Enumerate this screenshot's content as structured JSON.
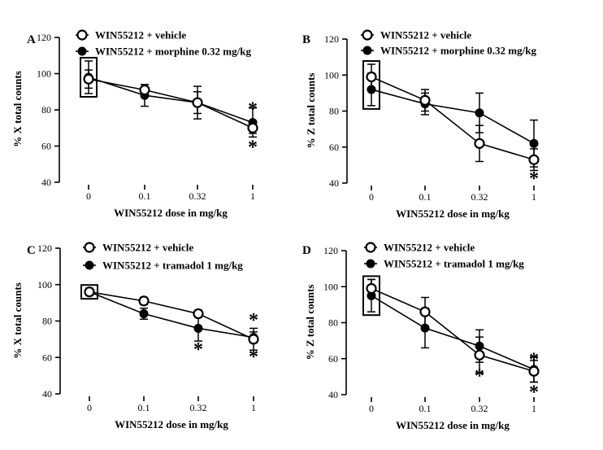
{
  "chart_data": [
    {
      "panel": "A",
      "type": "line",
      "categories": [
        "0",
        "0.1",
        "0.32",
        "1"
      ],
      "xlabel": "WIN55212 dose in mg/kg",
      "ylabel": "% X total counts",
      "ylim": [
        40,
        120
      ],
      "yticks": [
        40,
        60,
        80,
        100,
        120
      ],
      "legend_position": "top",
      "series": [
        {
          "name": "WIN55212 + vehicle",
          "marker": "open-circle",
          "values": [
            97,
            91,
            84,
            70
          ],
          "errors": [
            5,
            3,
            6,
            3
          ]
        },
        {
          "name": "WIN55212 + morphine 0.32 mg/kg",
          "marker": "filled-circle",
          "values": [
            98,
            88,
            84,
            73
          ],
          "errors": [
            9,
            6,
            9,
            8
          ]
        }
      ],
      "annotations": [
        {
          "category": "1",
          "value": 82,
          "text": "*"
        },
        {
          "category": "1",
          "value": 61,
          "text": "*"
        }
      ],
      "boxed_category": "0"
    },
    {
      "panel": "B",
      "type": "line",
      "categories": [
        "0",
        "0.1",
        "0.32",
        "1"
      ],
      "xlabel": "WIN55212 dose in mg/kg",
      "ylabel": "% Z total counts",
      "ylim": [
        40,
        120
      ],
      "yticks": [
        40,
        60,
        80,
        100,
        120
      ],
      "legend_position": "top",
      "series": [
        {
          "name": "WIN55212 + vehicle",
          "marker": "open-circle",
          "values": [
            99,
            86,
            62,
            53
          ],
          "errors": [
            7,
            6,
            10,
            6
          ]
        },
        {
          "name": "WIN55212 + morphine 0.32 mg/kg",
          "marker": "filled-circle",
          "values": [
            92,
            84,
            79,
            62
          ],
          "errors": [
            9,
            6,
            11,
            13
          ]
        }
      ],
      "annotations": [
        {
          "category": "1",
          "value": 44,
          "text": "*"
        }
      ],
      "boxed_category": "0"
    },
    {
      "panel": "C",
      "type": "line",
      "categories": [
        "0",
        "0.1",
        "0.32",
        "1"
      ],
      "xlabel": "WIN55212 dose in mg/kg",
      "ylabel": "% X total counts",
      "ylim": [
        40,
        120
      ],
      "yticks": [
        40,
        60,
        80,
        100,
        120
      ],
      "legend_position": "top",
      "series": [
        {
          "name": "WIN55212 + vehicle",
          "marker": "open-circle",
          "values": [
            96,
            91,
            84,
            70
          ],
          "errors": [
            2,
            2,
            2,
            6
          ]
        },
        {
          "name": "WIN55212 + tramadol 1 mg/kg",
          "marker": "filled-circle",
          "values": [
            96,
            84,
            76,
            71
          ],
          "errors": [
            2,
            3,
            7,
            3
          ]
        }
      ],
      "annotations": [
        {
          "category": "0.32",
          "value": 66,
          "text": "*"
        },
        {
          "category": "1",
          "value": 82,
          "text": "*"
        },
        {
          "category": "1",
          "value": 62,
          "text": "*"
        }
      ],
      "boxed_category": "0"
    },
    {
      "panel": "D",
      "type": "line",
      "categories": [
        "0",
        "0.1",
        "0.32",
        "1"
      ],
      "xlabel": "WIN55212 dose in mg/kg",
      "ylabel": "% Z total counts",
      "ylim": [
        40,
        120
      ],
      "yticks": [
        40,
        60,
        80,
        100,
        120
      ],
      "legend_position": "top",
      "series": [
        {
          "name": "WIN55212 + vehicle",
          "marker": "open-circle",
          "values": [
            99,
            86,
            62,
            53
          ],
          "errors": [
            5,
            8,
            10,
            6
          ]
        },
        {
          "name": "WIN55212 + tramadol 1 mg/kg",
          "marker": "filled-circle",
          "values": [
            95,
            77,
            67,
            54
          ],
          "errors": [
            9,
            11,
            9,
            7
          ]
        }
      ],
      "annotations": [
        {
          "category": "0.32",
          "value": 52,
          "text": "*"
        },
        {
          "category": "1",
          "value": 61,
          "text": "*"
        },
        {
          "category": "1",
          "value": 43,
          "text": "*"
        }
      ],
      "boxed_category": "0"
    }
  ]
}
